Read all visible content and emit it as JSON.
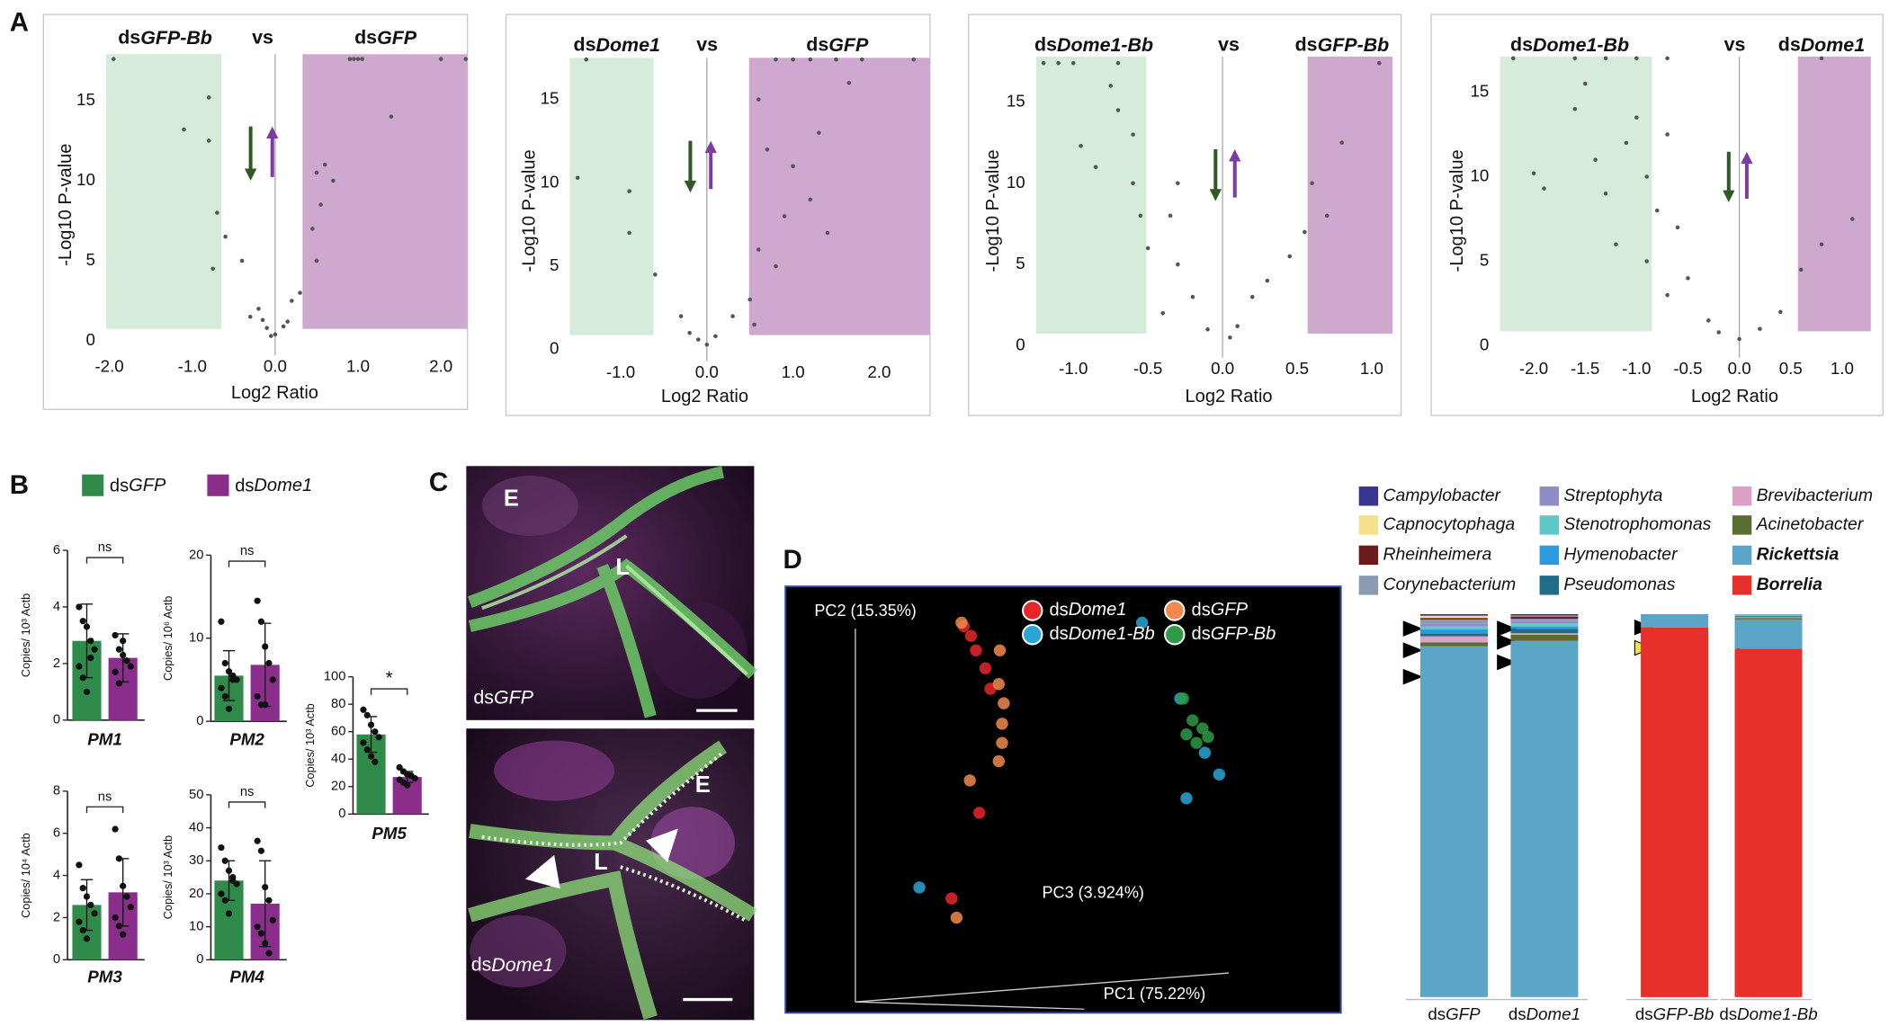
{
  "panels": [
    "A",
    "B",
    "C",
    "D"
  ],
  "panel_b_legend": [
    {
      "name": "dsGFP",
      "color": "#2e8b4a"
    },
    {
      "name": "dsDome1",
      "color": "#8b2d8b"
    }
  ],
  "images": [
    {
      "labels": [
        "E",
        "L"
      ],
      "caption": "dsGFP"
    },
    {
      "labels": [
        "E",
        "L"
      ],
      "caption": "dsDome1"
    }
  ],
  "chart_data": [
    {
      "type": "scatter",
      "title_left": "dsGFP-Bb",
      "title_middle": "vs",
      "title_right": "dsGFP",
      "x_label": "Log2 Ratio",
      "y_label": "-Log10 P-value",
      "color": "#555555",
      "xlim": [
        -2.04,
        2.32
      ],
      "ylim": [
        -0.9,
        17.9
      ],
      "xticks": [
        {
          "value": -2,
          "label": "-2.0"
        },
        {
          "value": -1,
          "label": "-1.0"
        },
        {
          "value": 0,
          "label": "0.0"
        },
        {
          "value": 1,
          "label": "1.0"
        },
        {
          "value": 2,
          "label": "2.0"
        }
      ],
      "yticks": [
        0,
        5,
        10,
        15
      ],
      "regions": [
        {
          "xlim": [
            -2.04,
            -0.65
          ],
          "ymin": 0.75,
          "color": "#d6ecdb"
        },
        {
          "xlim": [
            0.33,
            2.32
          ],
          "ymin": 0.75,
          "color": "#cfa8cf"
        }
      ],
      "points": [
        [
          0.9,
          17.6
        ],
        [
          0.95,
          17.6
        ],
        [
          1.0,
          17.6
        ],
        [
          1.05,
          17.6
        ],
        [
          2.0,
          17.6
        ],
        [
          2.3,
          17.6
        ],
        [
          -1.95,
          17.6
        ],
        [
          -0.8,
          15.2
        ],
        [
          -1.1,
          13.2
        ],
        [
          -0.8,
          12.5
        ],
        [
          0.5,
          10.5
        ],
        [
          0.6,
          11
        ],
        [
          0.7,
          10
        ],
        [
          0.55,
          8.5
        ],
        [
          0.45,
          7
        ],
        [
          0.5,
          5
        ],
        [
          -0.7,
          8
        ],
        [
          -0.6,
          6.5
        ],
        [
          -0.75,
          4.5
        ],
        [
          -0.4,
          5
        ],
        [
          -0.2,
          2
        ],
        [
          -0.3,
          1.5
        ],
        [
          0.2,
          2.5
        ],
        [
          0.3,
          3
        ],
        [
          -0.1,
          0.8
        ],
        [
          0.1,
          0.9
        ],
        [
          0.0,
          0.4
        ],
        [
          -0.05,
          0.3
        ],
        [
          0.15,
          1.2
        ],
        [
          -0.15,
          1.3
        ],
        [
          1.4,
          14
        ]
      ]
    },
    {
      "type": "scatter",
      "title_left": "dsDome1",
      "title_middle": "vs",
      "title_right": "dsGFP",
      "x_label": "Log2 Ratio",
      "y_label": "-Log10 P-value",
      "color": "#555555",
      "xlim": [
        -1.59,
        2.59
      ],
      "ylim": [
        -0.7,
        17.5
      ],
      "xticks": [
        {
          "value": -1,
          "label": "-1.0"
        },
        {
          "value": 0,
          "label": "0.0"
        },
        {
          "value": 1,
          "label": "1.0"
        },
        {
          "value": 2,
          "label": "2.0"
        }
      ],
      "yticks": [
        0,
        5,
        10,
        15
      ],
      "regions": [
        {
          "xlim": [
            -1.59,
            -0.62
          ],
          "ymin": 0.87,
          "color": "#d6ecdb"
        },
        {
          "xlim": [
            0.49,
            2.59
          ],
          "ymin": 0.87,
          "color": "#cfa8cf"
        }
      ],
      "points": [
        [
          0.8,
          17.4
        ],
        [
          1.0,
          17.4
        ],
        [
          1.2,
          17.4
        ],
        [
          1.5,
          17.4
        ],
        [
          1.8,
          17.4
        ],
        [
          2.4,
          17.4
        ],
        [
          1.65,
          16
        ],
        [
          0.6,
          15
        ],
        [
          -1.4,
          17.4
        ],
        [
          -1.5,
          10.3
        ],
        [
          -0.9,
          9.5
        ],
        [
          -0.9,
          7
        ],
        [
          -0.6,
          4.5
        ],
        [
          0.7,
          12
        ],
        [
          1.0,
          11
        ],
        [
          1.2,
          9
        ],
        [
          0.9,
          8
        ],
        [
          1.4,
          7
        ],
        [
          0.6,
          6
        ],
        [
          0.8,
          5
        ],
        [
          0.5,
          3
        ],
        [
          0.3,
          2
        ],
        [
          -0.3,
          2
        ],
        [
          -0.2,
          1
        ],
        [
          0.1,
          0.8
        ],
        [
          0,
          0.3
        ],
        [
          -0.1,
          0.6
        ],
        [
          1.3,
          13
        ],
        [
          0.55,
          1.5
        ]
      ]
    },
    {
      "type": "scatter",
      "title_left": "dsDome1-Bb",
      "title_middle": "vs",
      "title_right": "dsGFP-Bb",
      "x_label": "Log2 Ratio",
      "y_label": "-Log10 P-value",
      "color": "#555555",
      "xlim": [
        -1.25,
        1.14
      ],
      "ylim": [
        -0.74,
        17.8
      ],
      "xticks": [
        {
          "value": -1,
          "label": "-1.0"
        },
        {
          "value": -0.5,
          "label": "-0.5"
        },
        {
          "value": 0,
          "label": "0.0"
        },
        {
          "value": 0.5,
          "label": "0.5"
        },
        {
          "value": 1,
          "label": "1.0"
        }
      ],
      "yticks": [
        0,
        5,
        10,
        15
      ],
      "regions": [
        {
          "xlim": [
            -1.25,
            -0.51
          ],
          "ymin": 0.74,
          "color": "#d6ecdb"
        },
        {
          "xlim": [
            0.57,
            1.14
          ],
          "ymin": 0.74,
          "color": "#cfa8cf"
        }
      ],
      "points": [
        [
          -1.2,
          17.4
        ],
        [
          -1.1,
          17.4
        ],
        [
          -1.0,
          17.4
        ],
        [
          -0.7,
          17.4
        ],
        [
          1.05,
          17.4
        ],
        [
          -0.75,
          16
        ],
        [
          -0.7,
          14.5
        ],
        [
          -0.6,
          13
        ],
        [
          -0.95,
          12.3
        ],
        [
          -0.6,
          10
        ],
        [
          -0.55,
          8
        ],
        [
          -0.5,
          6
        ],
        [
          -0.3,
          10
        ],
        [
          -0.35,
          8
        ],
        [
          -0.3,
          5
        ],
        [
          0.55,
          7
        ],
        [
          0.7,
          8
        ],
        [
          0.6,
          10
        ],
        [
          0.8,
          12.5
        ],
        [
          0.3,
          4
        ],
        [
          0.2,
          3
        ],
        [
          -0.2,
          3
        ],
        [
          -0.1,
          1
        ],
        [
          0.05,
          0.5
        ],
        [
          0.1,
          1.2
        ],
        [
          -0.4,
          2
        ],
        [
          0.45,
          5.5
        ],
        [
          -0.85,
          11
        ]
      ]
    },
    {
      "type": "scatter",
      "title_left": "dsDome1-Bb",
      "title_middle": "vs",
      "title_right": "dsDome1",
      "x_label": "Log2 Ratio",
      "y_label": "-Log10 P-value",
      "color": "#555555",
      "xlim": [
        -2.33,
        1.28
      ],
      "ylim": [
        -0.7,
        17.1
      ],
      "xticks": [
        {
          "value": -2,
          "label": "-2.0"
        },
        {
          "value": -1.5,
          "label": "-1.5"
        },
        {
          "value": -1,
          "label": "-1.0"
        },
        {
          "value": -0.5,
          "label": "-0.5"
        },
        {
          "value": 0,
          "label": "0.0"
        },
        {
          "value": 0.5,
          "label": "0.5"
        },
        {
          "value": 1,
          "label": "1.0"
        }
      ],
      "yticks": [
        0,
        5,
        10,
        15
      ],
      "regions": [
        {
          "xlim": [
            -2.33,
            -0.85
          ],
          "ymin": 0.86,
          "color": "#d6ecdb"
        },
        {
          "xlim": [
            0.57,
            1.28
          ],
          "ymin": 0.86,
          "color": "#cfa8cf"
        }
      ],
      "points": [
        [
          -2.2,
          17
        ],
        [
          -1.6,
          17
        ],
        [
          -1.3,
          17
        ],
        [
          -1.0,
          17
        ],
        [
          -0.7,
          17
        ],
        [
          0.8,
          17
        ],
        [
          -1.5,
          15.5
        ],
        [
          -1.6,
          14
        ],
        [
          -1.0,
          13.5
        ],
        [
          -1.1,
          12
        ],
        [
          -0.7,
          12.5
        ],
        [
          -1.4,
          11
        ],
        [
          -1.3,
          9
        ],
        [
          -0.9,
          10
        ],
        [
          -0.8,
          8
        ],
        [
          -0.6,
          7
        ],
        [
          -1.2,
          6
        ],
        [
          -0.9,
          5
        ],
        [
          -0.5,
          4
        ],
        [
          -0.7,
          3
        ],
        [
          0.6,
          4.5
        ],
        [
          0.8,
          6
        ],
        [
          1.1,
          7.5
        ],
        [
          0.4,
          2
        ],
        [
          -0.3,
          1.5
        ],
        [
          0.2,
          1
        ],
        [
          0,
          0.4
        ],
        [
          -0.2,
          0.8
        ],
        [
          -2.0,
          10.2
        ],
        [
          -1.9,
          9.3
        ]
      ]
    },
    {
      "type": "bar",
      "title": "PM1",
      "y_label": "Copies/ 10³ Actb",
      "categories": [
        null,
        null
      ],
      "values": [
        2.8,
        2.2
      ],
      "errors": [
        1.3,
        0.85
      ],
      "significance": "ns",
      "points": [
        [
          4.0,
          3.5,
          3.3,
          2.8,
          2.5,
          1.9,
          1.5,
          1.0,
          2.2
        ],
        [
          3.0,
          2.5,
          2.3,
          2.1,
          1.9,
          1.7,
          1.3,
          2.8
        ]
      ],
      "ylim": [
        0,
        6
      ],
      "yticks": [
        0,
        2,
        4,
        6
      ]
    },
    {
      "type": "bar",
      "title": "PM2",
      "y_label": "Copies/ 10⁶ Actb",
      "categories": [
        null,
        null
      ],
      "values": [
        5.5,
        6.8
      ],
      "errors": [
        3,
        5
      ],
      "significance": "ns",
      "points": [
        [
          12,
          7,
          6,
          5.5,
          5,
          4,
          3,
          1.5,
          5
        ],
        [
          14.5,
          12,
          9,
          7,
          5,
          3,
          2,
          2
        ]
      ],
      "ylim": [
        0,
        20
      ],
      "yticks": [
        0,
        10,
        20
      ]
    },
    {
      "type": "bar",
      "title": "PM3",
      "y_label": "Copies/ 10⁴ Actb",
      "categories": [
        null,
        null
      ],
      "values": [
        2.6,
        3.2
      ],
      "errors": [
        1.2,
        1.6
      ],
      "significance": "ns",
      "points": [
        [
          4.5,
          3.4,
          3,
          2.6,
          2.2,
          1.8,
          1.4,
          1.0
        ],
        [
          6.2,
          4.8,
          3.5,
          3,
          2.5,
          2,
          1.6,
          1.2
        ]
      ],
      "ylim": [
        0,
        8
      ],
      "yticks": [
        0,
        2,
        4,
        6,
        8
      ]
    },
    {
      "type": "bar",
      "title": "PM4",
      "y_label": "Copies/ 10³ Actb",
      "categories": [
        null,
        null
      ],
      "values": [
        24,
        17
      ],
      "errors": [
        6,
        13
      ],
      "significance": "ns",
      "points": [
        [
          34,
          30,
          27,
          25,
          23,
          20,
          18,
          14,
          24
        ],
        [
          36,
          33,
          22,
          18,
          12,
          10,
          8,
          5,
          2
        ]
      ],
      "ylim": [
        0,
        50
      ],
      "yticks": [
        0,
        10,
        20,
        30,
        40,
        50
      ]
    },
    {
      "type": "bar",
      "title": "PM5",
      "y_label": "Copies/ 10³ Actb",
      "categories": [
        null,
        null
      ],
      "values": [
        58,
        27
      ],
      "errors": [
        13,
        4
      ],
      "significance": "*",
      "points": [
        [
          76,
          72,
          65,
          60,
          56,
          52,
          47,
          42,
          38
        ],
        [
          34,
          31,
          29,
          28,
          26,
          25,
          23,
          21
        ]
      ],
      "ylim": [
        0,
        100
      ],
      "yticks": [
        0,
        20,
        40,
        60,
        80,
        100
      ]
    },
    {
      "type": "pca",
      "axis_labels": [
        "PC2 (15.35%)",
        "PC3 (3.924%)",
        "PC1 (75.22%)"
      ],
      "xlim": [
        0,
        100
      ],
      "ylim": [
        0,
        100
      ],
      "series": [
        {
          "name": "dsDome1",
          "color": "#e8262a",
          "x": [
            32.1,
            33.4,
            34.3,
            36.0,
            36.9,
            34.9,
            29.9
          ],
          "y": [
            90.7,
            88.4,
            85.0,
            80.8,
            76.0,
            46.9,
            26.8
          ]
        },
        {
          "name": "dsGFP",
          "color": "#f08a4b",
          "x": [
            31.7,
            38.6,
            38.4,
            39.3,
            39.0,
            39.0,
            38.4,
            33.2,
            30.8
          ],
          "y": [
            91.5,
            85.0,
            77.1,
            72.6,
            67.8,
            63.3,
            59.0,
            54.5,
            22.3
          ]
        },
        {
          "name": "dsDome1-Bb",
          "color": "#2aa6d6",
          "x": [
            64.2,
            71.1,
            72.2,
            78.1,
            24.1,
            75.5
          ],
          "y": [
            91.5,
            73.7,
            50.3,
            55.9,
            29.4,
            61.0
          ]
        },
        {
          "name": "dsGFP-Bb",
          "color": "#2e9a45",
          "x": [
            71.6,
            73.3,
            75.1,
            76.1,
            74.0,
            72.2
          ],
          "y": [
            73.7,
            68.6,
            66.7,
            64.7,
            63.3,
            65.3
          ]
        }
      ]
    },
    {
      "type": "stacked_bar",
      "categories": [
        "dsGFP",
        "dsDome1",
        "dsGFP-Bb",
        "dsDome1-Bb"
      ],
      "series": [
        {
          "name": "Campylobacter",
          "color": "#3a3591",
          "values": [
            0.4,
            0.4,
            0,
            0
          ]
        },
        {
          "name": "Capnocytophaga",
          "color": "#f7e08c",
          "values": [
            0.6,
            0.2,
            0,
            0
          ]
        },
        {
          "name": "Rheinheimera",
          "color": "#6b1b1b",
          "values": [
            0.4,
            0.6,
            0,
            0
          ]
        },
        {
          "name": "Corynebacterium",
          "color": "#8a9bb0",
          "values": [
            1.0,
            0.6,
            0,
            0.2
          ]
        },
        {
          "name": "Streptophyta",
          "color": "#8f8dc7",
          "values": [
            0.8,
            0.6,
            0,
            0
          ]
        },
        {
          "name": "Stenotrophomonas",
          "color": "#5fc8c8",
          "values": [
            0.8,
            0.8,
            0,
            0.3
          ]
        },
        {
          "name": "Hymenobacter",
          "color": "#2b9ae0",
          "values": [
            1.0,
            0.6,
            0,
            0
          ]
        },
        {
          "name": "Pseudomonas",
          "color": "#1f6e86",
          "values": [
            0.8,
            1.2,
            0,
            0.3
          ]
        },
        {
          "name": "Brevibacterium",
          "color": "#dea0c6",
          "values": [
            1.6,
            0.4,
            0,
            0.2
          ]
        },
        {
          "name": "Acinetobacter",
          "color": "#5a6e33",
          "values": [
            1.0,
            1.6,
            0,
            0.4
          ]
        },
        {
          "name": "Rickettsia",
          "color": "#5aa5c8",
          "values": [
            91.6,
            93.0,
            3.5,
            7.6
          ],
          "bold": true
        },
        {
          "name": "Borrelia",
          "color": "#e8302b",
          "values": [
            0,
            0,
            96.5,
            91.0
          ],
          "bold": true
        }
      ]
    }
  ]
}
